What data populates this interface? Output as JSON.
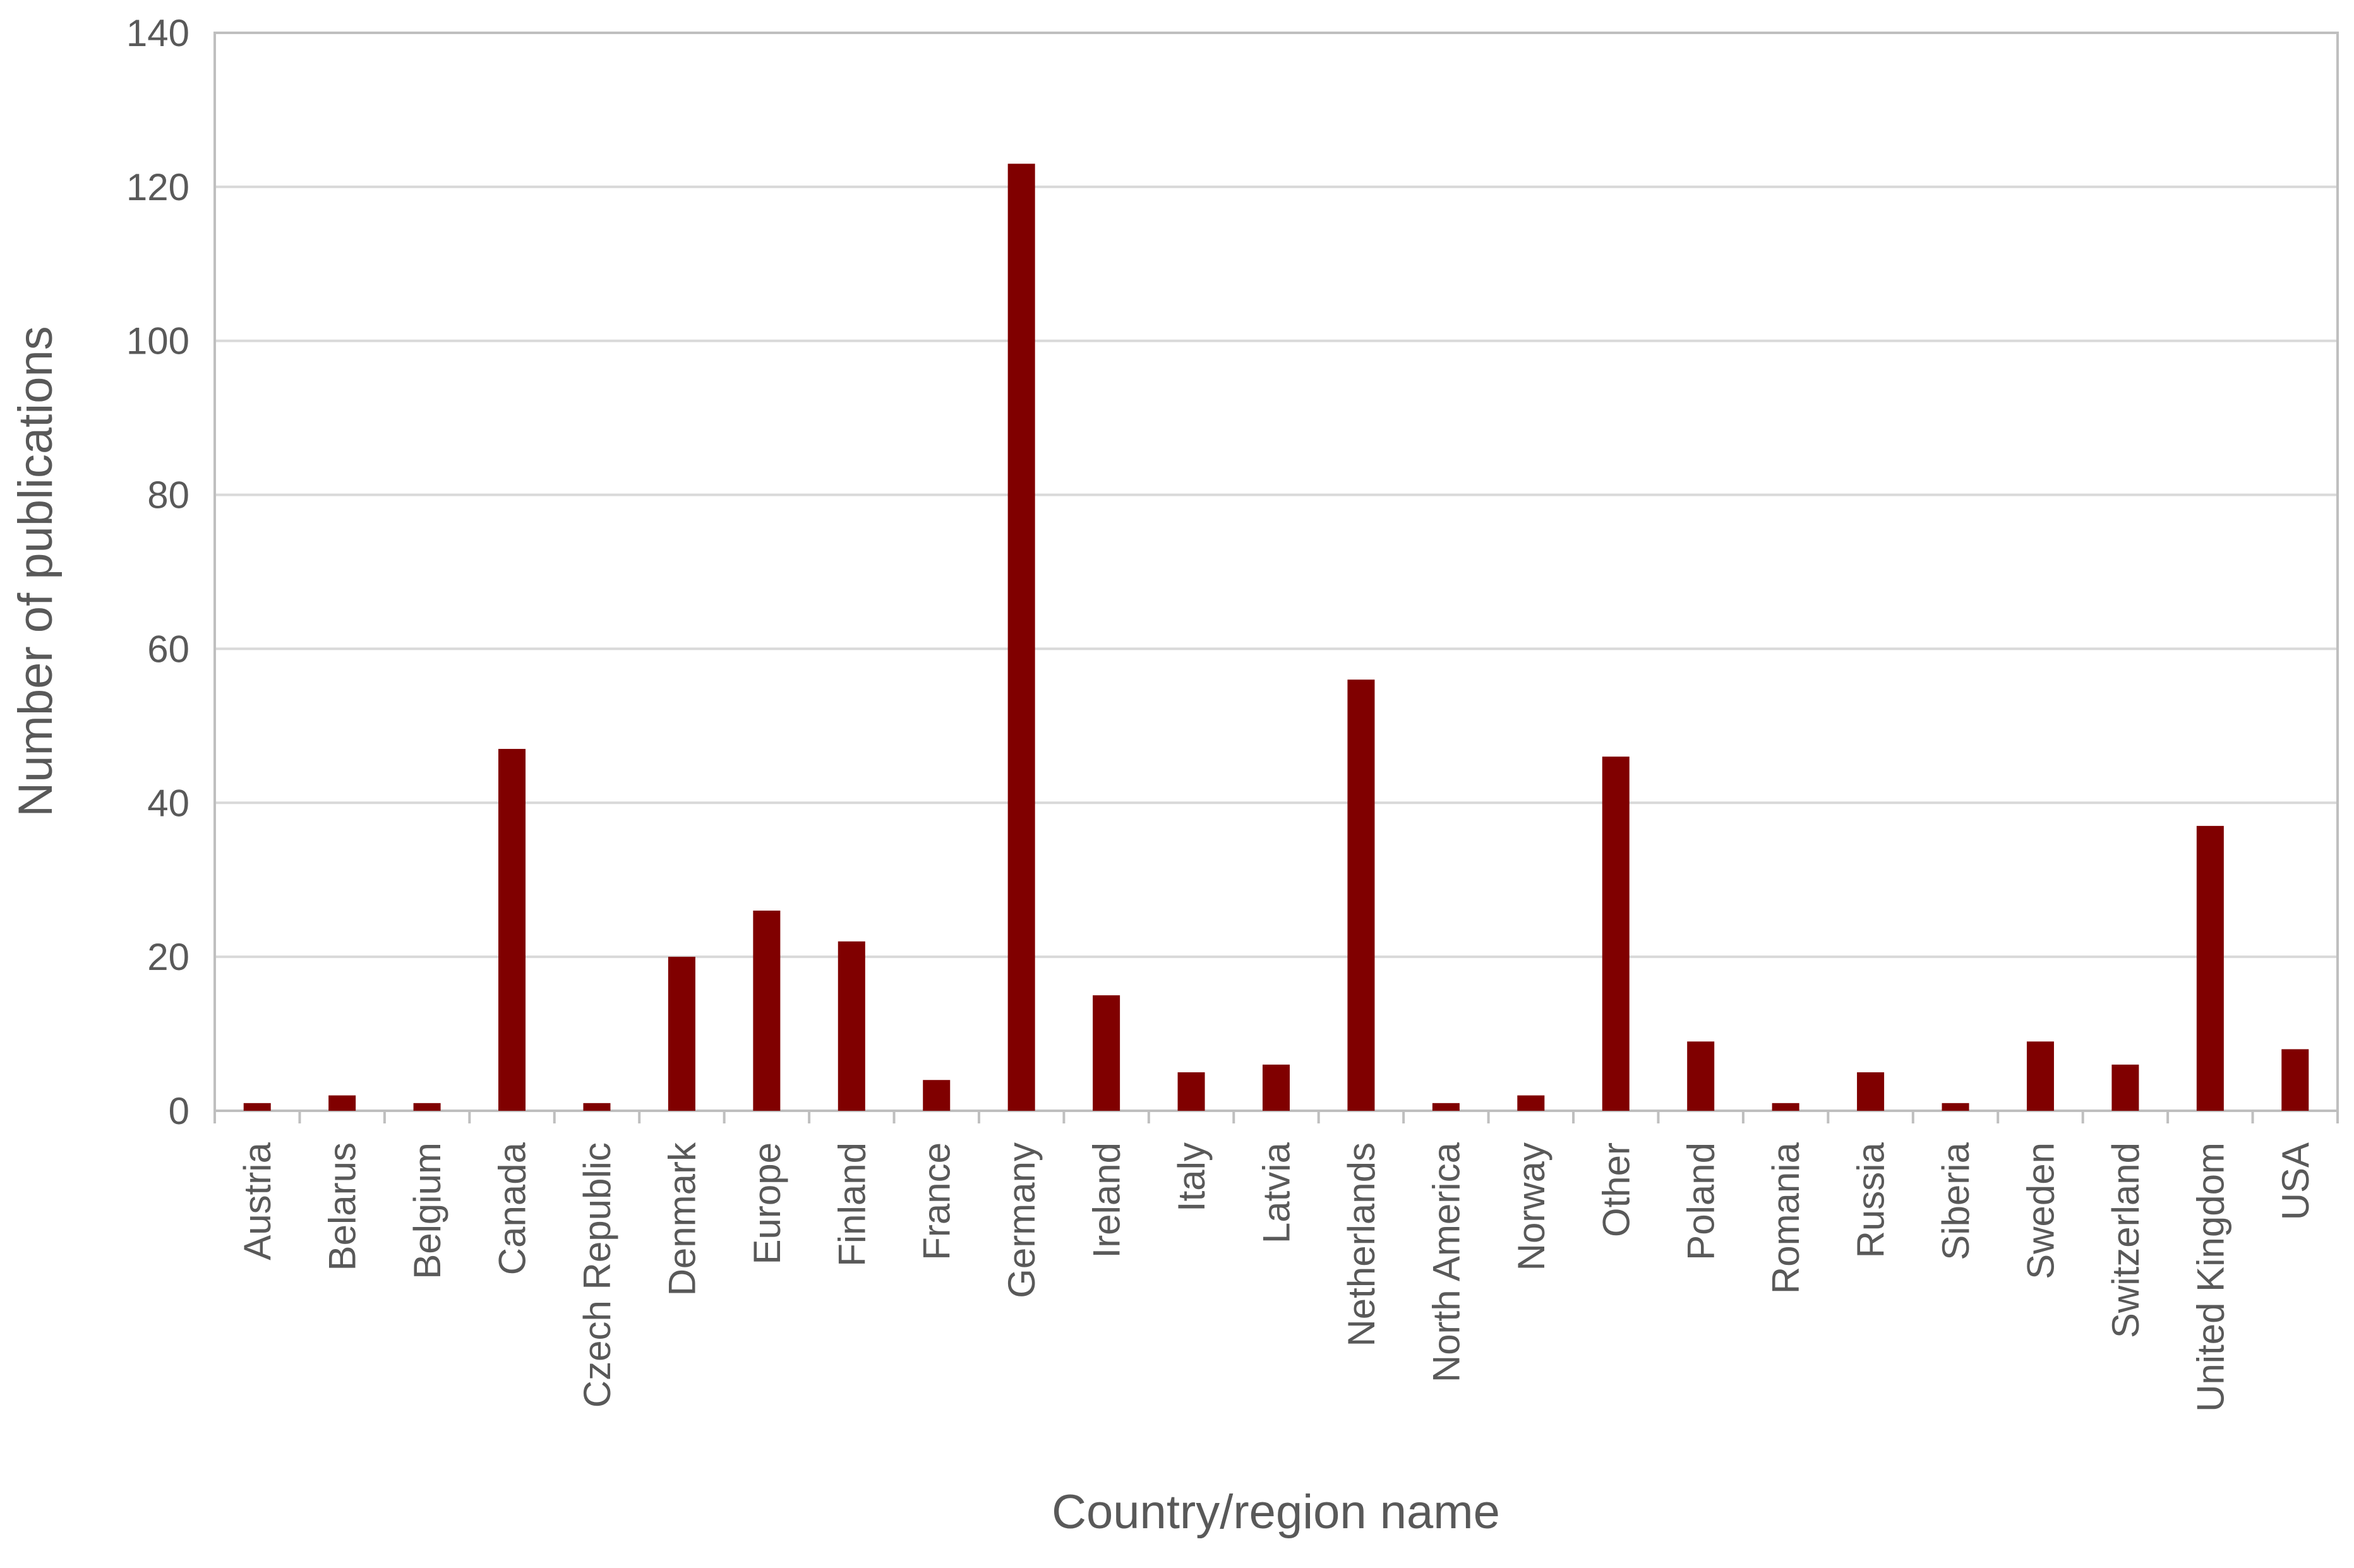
{
  "chart_data": {
    "type": "bar",
    "x_label": "Country/region name",
    "y_label": "Number of publications",
    "categories": [
      "Austria",
      "Belarus",
      "Belgium",
      "Canada",
      "Czech Republic",
      "Denmark",
      "Europe",
      "Finland",
      "France",
      "Germany",
      "Ireland",
      "Italy",
      "Latvia",
      "Netherlands",
      "North America",
      "Norway",
      "Other",
      "Poland",
      "Romania",
      "Russia",
      "Siberia",
      "Sweden",
      "Switzerland",
      "United Kingdom",
      "USA"
    ],
    "values": [
      1,
      2,
      1,
      47,
      1,
      20,
      26,
      22,
      4,
      123,
      15,
      5,
      6,
      56,
      1,
      2,
      46,
      9,
      1,
      5,
      1,
      9,
      6,
      37,
      8
    ],
    "color": "#800000",
    "ylim": [
      0,
      140
    ],
    "yticks": [
      0,
      20,
      40,
      60,
      80,
      100,
      120,
      140
    ],
    "grid": true
  }
}
